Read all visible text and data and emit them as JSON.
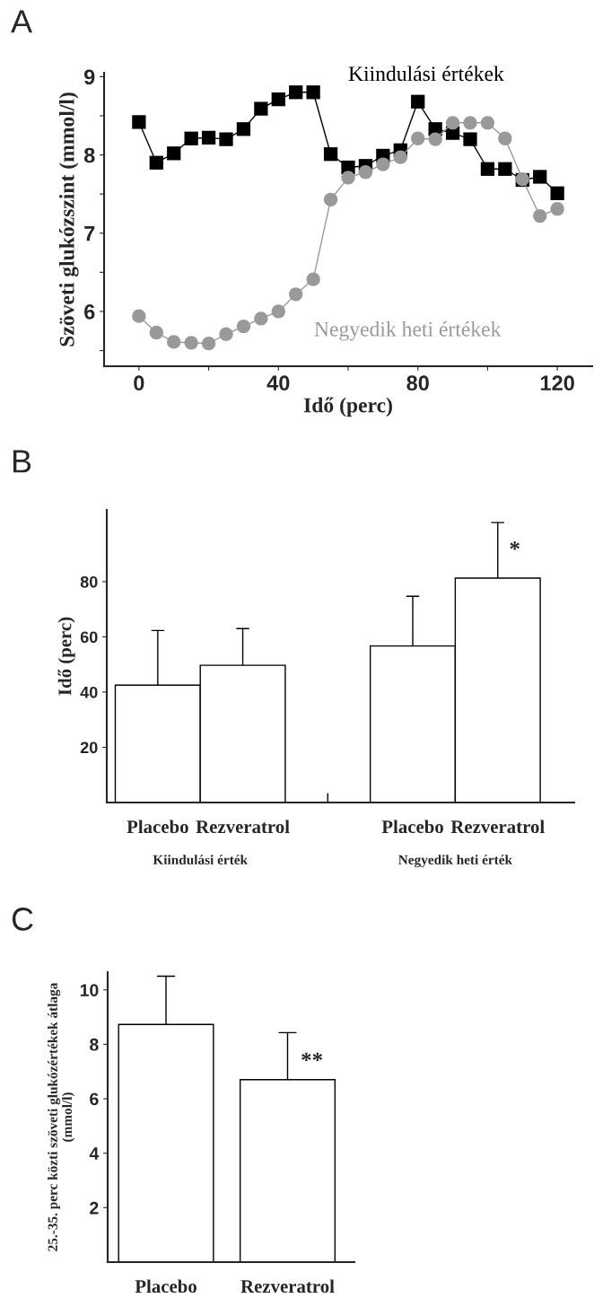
{
  "chart_data": [
    {
      "type": "line",
      "title": "A",
      "xlabel": "Idő (perc)",
      "ylabel": "Szöveti glukózszint (mmol/l)",
      "x": [
        0,
        5,
        10,
        15,
        20,
        25,
        30,
        35,
        40,
        45,
        50,
        55,
        60,
        65,
        70,
        75,
        80,
        85,
        90,
        95,
        100,
        105,
        110,
        115,
        120
      ],
      "series": [
        {
          "name": "Kiindulási értékek",
          "color": "#000000",
          "marker": "square",
          "values": [
            8.42,
            7.9,
            8.02,
            8.21,
            8.22,
            8.2,
            8.33,
            8.59,
            8.71,
            8.8,
            8.8,
            8.01,
            7.84,
            7.86,
            7.99,
            8.06,
            8.68,
            8.33,
            8.28,
            8.2,
            7.82,
            7.82,
            7.68,
            7.72,
            7.51
          ]
        },
        {
          "name": "Negyedik heti értékek",
          "color": "#999999",
          "marker": "circle",
          "values": [
            5.94,
            5.73,
            5.61,
            5.6,
            5.59,
            5.71,
            5.81,
            5.91,
            6.0,
            6.22,
            6.41,
            7.43,
            7.71,
            7.78,
            7.88,
            7.97,
            8.21,
            8.2,
            8.41,
            8.41,
            8.41,
            8.21,
            7.69,
            7.22,
            7.31
          ]
        }
      ],
      "xlim": [
        -10,
        130
      ],
      "ylim": [
        5.3,
        9.05
      ],
      "xticks": [
        0,
        {
          "value": 20,
          "label": null
        },
        40,
        {
          "value": 60,
          "label": null
        },
        80,
        {
          "value": 100,
          "label": null
        },
        120
      ],
      "yticks": [
        {
          "value": 5.5,
          "label": null
        },
        6,
        {
          "value": 6.5,
          "label": null
        },
        7,
        {
          "value": 7.5,
          "label": null
        },
        8,
        {
          "value": 8.5,
          "label": null
        },
        9
      ],
      "legend": false,
      "grid": false
    },
    {
      "type": "bar",
      "title": "B",
      "ylabel": "Idő (perc)",
      "categories": [
        "Placebo",
        "Rezveratrol",
        null,
        "Placebo",
        "Rezveratrol"
      ],
      "values": [
        42.5,
        49.7,
        null,
        56.7,
        81.3
      ],
      "errors": [
        [
          42.5,
          62.3
        ],
        [
          49.7,
          63.0
        ],
        null,
        [
          56.7,
          74.7
        ],
        [
          81.3,
          101.4
        ]
      ],
      "color": "#ffffff",
      "ylim": [
        0,
        106
      ],
      "yticks": [
        20,
        40,
        60,
        80
      ],
      "grid": false,
      "annotations": [
        "*",
        "Kiindulási érték",
        "Negyedik heti érték"
      ]
    },
    {
      "type": "bar",
      "title": "C",
      "ylabel": "25.-35. perc közti szöveti glukózértékek átlaga\n(mmol/l)",
      "categories": [
        "Placebo",
        "Rezveratrol"
      ],
      "values": [
        8.73,
        6.7
      ],
      "errors": [
        [
          8.73,
          10.5
        ],
        [
          6.7,
          8.43
        ]
      ],
      "color": "#ffffff",
      "ylim": [
        0,
        10.65
      ],
      "yticks": [
        2,
        4,
        6,
        8,
        10
      ],
      "grid": false,
      "annotations": [
        "**"
      ]
    }
  ]
}
